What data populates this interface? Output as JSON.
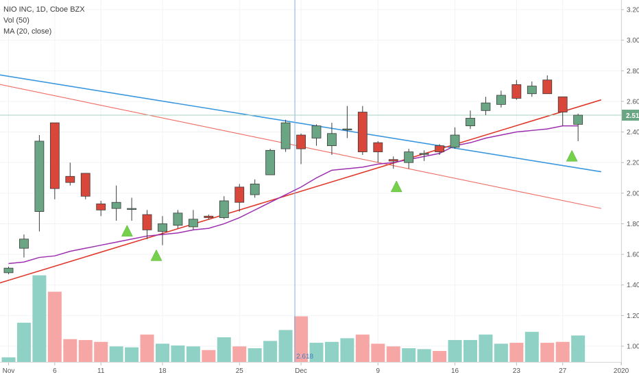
{
  "legend": {
    "symbol": "NIO INC, 1D, Cboe BZX",
    "vol": "Vol (50)",
    "ma": "MA (20, close)"
  },
  "price_tag": "2.51",
  "crosshair_label": "2.618",
  "colors": {
    "up": "#6aa684",
    "down": "#d9473a",
    "vol_up": "#8fd1c4",
    "vol_down": "#f6a7a5",
    "ma": "#9b2fae",
    "blue_line": "#3a97de",
    "red_line": "#e0392b",
    "pale_red_line": "#ef6a60",
    "marker": "#75d04b",
    "crosshair": "#7fb0df",
    "price_tag_bg": "#6aa684"
  },
  "chart_data": {
    "type": "candlestick",
    "x_tick_labels": [
      "Nov",
      "6",
      "11",
      "18",
      "25",
      "Dec",
      "9",
      "16",
      "23",
      "27",
      "2020"
    ],
    "y_tick_labels": [
      "1.00",
      "1.20",
      "1.40",
      "1.60",
      "1.80",
      "2.00",
      "2.20",
      "2.40",
      "2.60",
      "2.80",
      "3.00",
      "3.20"
    ],
    "ylim": [
      0.93,
      3.25
    ],
    "candles": [
      {
        "o": 1.48,
        "h": 1.52,
        "l": 1.47,
        "c": 1.51
      },
      {
        "o": 1.64,
        "h": 1.73,
        "l": 1.58,
        "c": 1.7
      },
      {
        "o": 1.88,
        "h": 2.38,
        "l": 1.75,
        "c": 2.34
      },
      {
        "o": 2.46,
        "h": 2.46,
        "l": 1.96,
        "c": 2.03
      },
      {
        "o": 2.11,
        "h": 2.2,
        "l": 2.05,
        "c": 2.07
      },
      {
        "o": 2.13,
        "h": 2.13,
        "l": 1.96,
        "c": 1.98
      },
      {
        "o": 1.93,
        "h": 1.95,
        "l": 1.85,
        "c": 1.89
      },
      {
        "o": 1.9,
        "h": 2.05,
        "l": 1.82,
        "c": 1.94
      },
      {
        "o": 1.9,
        "h": 1.97,
        "l": 1.82,
        "c": 1.9
      },
      {
        "o": 1.86,
        "h": 1.89,
        "l": 1.7,
        "c": 1.76
      },
      {
        "o": 1.75,
        "h": 1.85,
        "l": 1.66,
        "c": 1.8
      },
      {
        "o": 1.79,
        "h": 1.89,
        "l": 1.77,
        "c": 1.87
      },
      {
        "o": 1.78,
        "h": 1.89,
        "l": 1.76,
        "c": 1.83
      },
      {
        "o": 1.85,
        "h": 1.86,
        "l": 1.83,
        "c": 1.84
      },
      {
        "o": 1.84,
        "h": 1.98,
        "l": 1.83,
        "c": 1.95
      },
      {
        "o": 2.04,
        "h": 2.06,
        "l": 1.88,
        "c": 1.94
      },
      {
        "o": 1.99,
        "h": 2.09,
        "l": 1.97,
        "c": 2.06
      },
      {
        "o": 2.12,
        "h": 2.29,
        "l": 2.12,
        "c": 2.28
      },
      {
        "o": 2.29,
        "h": 2.48,
        "l": 2.27,
        "c": 2.46
      },
      {
        "o": 2.38,
        "h": 2.39,
        "l": 2.19,
        "c": 2.29
      },
      {
        "o": 2.36,
        "h": 2.45,
        "l": 2.31,
        "c": 2.44
      },
      {
        "o": 2.31,
        "h": 2.46,
        "l": 2.25,
        "c": 2.39
      },
      {
        "o": 2.42,
        "h": 2.57,
        "l": 2.36,
        "c": 2.42
      },
      {
        "o": 2.53,
        "h": 2.57,
        "l": 2.25,
        "c": 2.27
      },
      {
        "o": 2.33,
        "h": 2.34,
        "l": 2.2,
        "c": 2.27
      },
      {
        "o": 2.22,
        "h": 2.24,
        "l": 2.16,
        "c": 2.21
      },
      {
        "o": 2.2,
        "h": 2.29,
        "l": 2.16,
        "c": 2.27
      },
      {
        "o": 2.26,
        "h": 2.28,
        "l": 2.21,
        "c": 2.26
      },
      {
        "o": 2.31,
        "h": 2.32,
        "l": 2.25,
        "c": 2.27
      },
      {
        "o": 2.3,
        "h": 2.43,
        "l": 2.29,
        "c": 2.38
      },
      {
        "o": 2.44,
        "h": 2.54,
        "l": 2.42,
        "c": 2.49
      },
      {
        "o": 2.54,
        "h": 2.63,
        "l": 2.51,
        "c": 2.59
      },
      {
        "o": 2.58,
        "h": 2.67,
        "l": 2.56,
        "c": 2.64
      },
      {
        "o": 2.71,
        "h": 2.74,
        "l": 2.61,
        "c": 2.62
      },
      {
        "o": 2.65,
        "h": 2.73,
        "l": 2.63,
        "c": 2.7
      },
      {
        "o": 2.74,
        "h": 2.77,
        "l": 2.67,
        "c": 2.65
      },
      {
        "o": 2.63,
        "h": 2.63,
        "l": 2.44,
        "c": 2.53
      },
      {
        "o": 2.45,
        "h": 2.52,
        "l": 2.34,
        "c": 2.51
      }
    ],
    "volume_relative": [
      0.05,
      0.43,
      0.95,
      0.77,
      0.25,
      0.24,
      0.22,
      0.17,
      0.16,
      0.3,
      0.2,
      0.18,
      0.17,
      0.13,
      0.27,
      0.17,
      0.15,
      0.23,
      0.35,
      0.5,
      0.21,
      0.22,
      0.26,
      0.3,
      0.2,
      0.17,
      0.15,
      0.14,
      0.12,
      0.24,
      0.24,
      0.3,
      0.2,
      0.21,
      0.33,
      0.21,
      0.22,
      0.29
    ],
    "ma20": [
      1.54,
      1.55,
      1.58,
      1.59,
      1.62,
      1.64,
      1.66,
      1.68,
      1.7,
      1.72,
      1.73,
      1.74,
      1.76,
      1.77,
      1.8,
      1.84,
      1.89,
      1.94,
      1.99,
      2.04,
      2.1,
      2.15,
      2.16,
      2.17,
      2.19,
      2.2,
      2.22,
      2.24,
      2.26,
      2.31,
      2.33,
      2.36,
      2.38,
      2.4,
      2.41,
      2.42,
      2.44,
      2.44
    ],
    "trendlines": [
      {
        "name": "blue",
        "from": {
          "i": -1.0,
          "p": 2.78
        },
        "to": {
          "i": 38.5,
          "p": 2.14
        }
      },
      {
        "name": "red",
        "from": {
          "i": -1.0,
          "p": 1.4
        },
        "to": {
          "i": 38.5,
          "p": 2.61
        }
      },
      {
        "name": "pale-red",
        "from": {
          "i": -1.0,
          "p": 2.72
        },
        "to": {
          "i": 38.5,
          "p": 1.9
        }
      }
    ],
    "signal_markers": [
      {
        "i": 7.7,
        "p": 1.75
      },
      {
        "i": 9.6,
        "p": 1.59
      },
      {
        "i": 25.2,
        "p": 2.04
      },
      {
        "i": 36.6,
        "p": 2.24
      }
    ],
    "crosshair_index": 18.6
  }
}
